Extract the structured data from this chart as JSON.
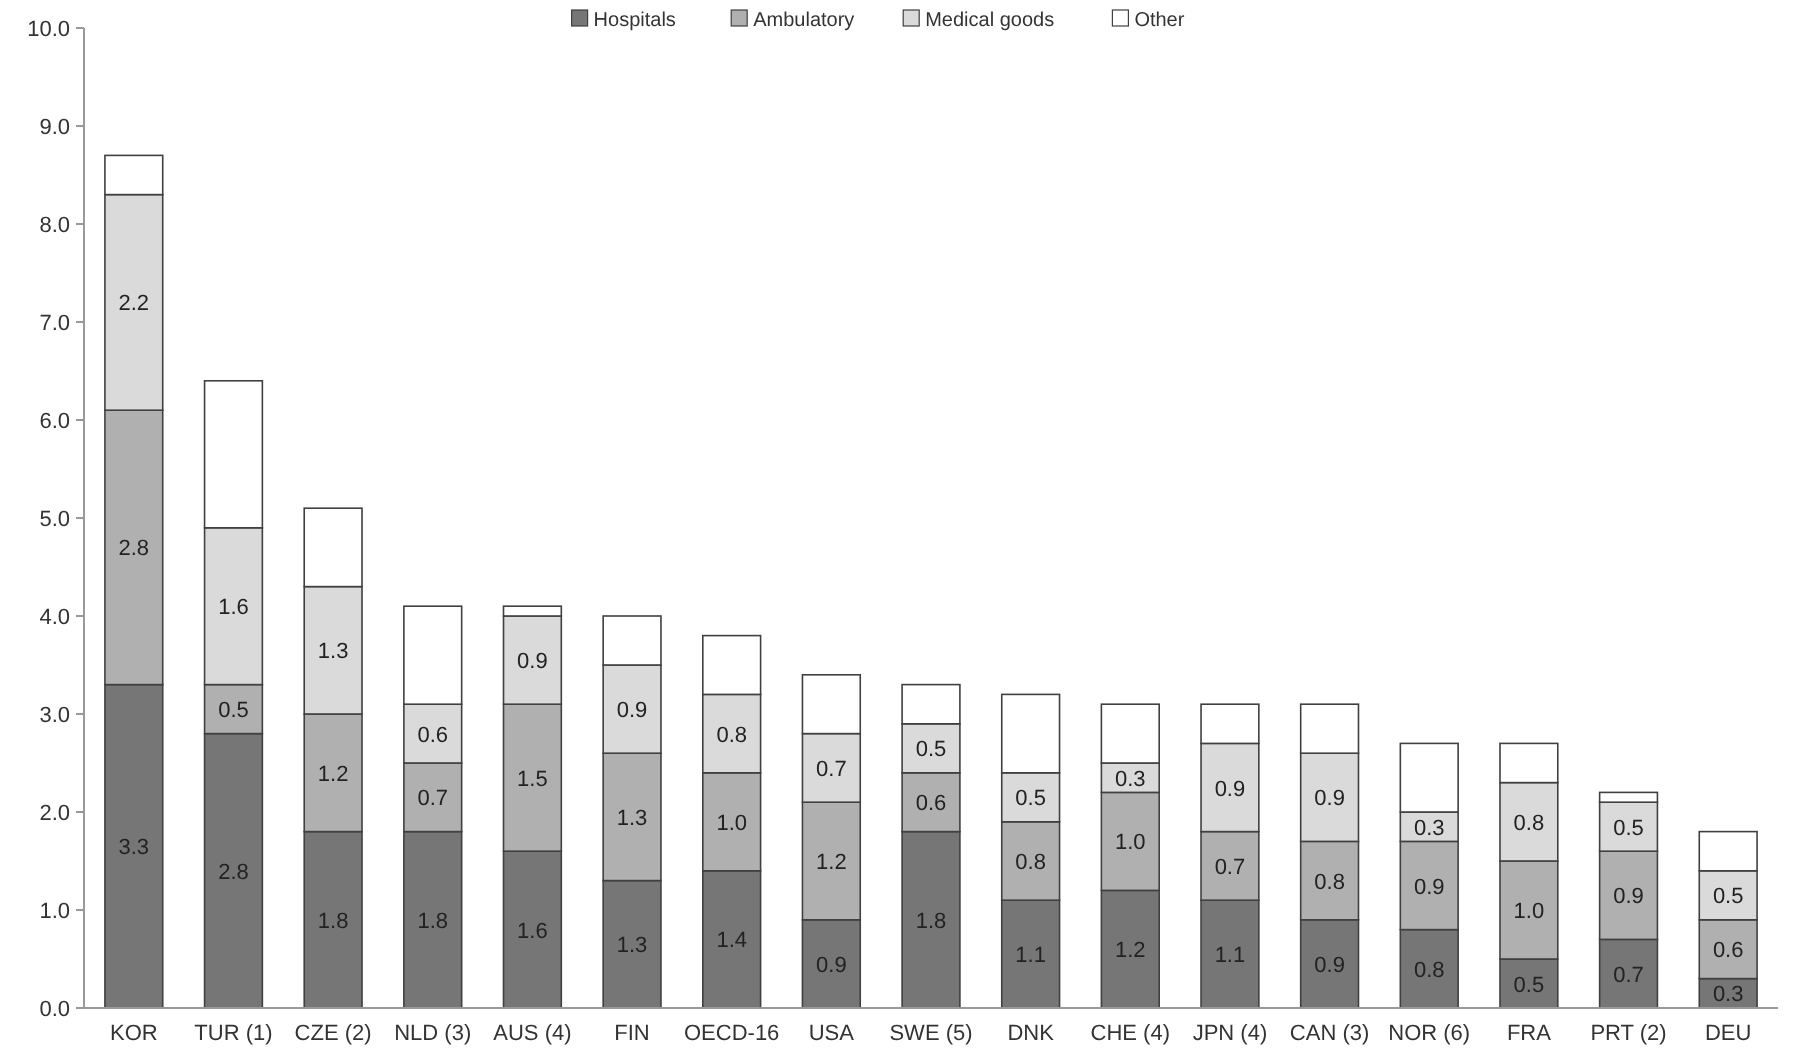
{
  "chart_data": {
    "type": "bar",
    "stacked": true,
    "legend": "top",
    "grid": false,
    "categories": [
      "KOR",
      "TUR (1)",
      "CZE (2)",
      "NLD (3)",
      "AUS (4)",
      "FIN",
      "OECD-16",
      "USA",
      "SWE (5)",
      "DNK",
      "CHE (4)",
      "JPN (4)",
      "CAN (3)",
      "NOR (6)",
      "FRA",
      "PRT (2)",
      "DEU"
    ],
    "ylim": [
      0,
      10
    ],
    "yticks": [
      {
        "value": 0,
        "label": "0.0"
      },
      {
        "value": 1,
        "label": "1.0"
      },
      {
        "value": 2,
        "label": "2.0"
      },
      {
        "value": 3,
        "label": "3.0"
      },
      {
        "value": 4,
        "label": "4.0"
      },
      {
        "value": 5,
        "label": "5.0"
      },
      {
        "value": 6,
        "label": "6.0"
      },
      {
        "value": 7,
        "label": "7.0"
      },
      {
        "value": 8,
        "label": "8.0"
      },
      {
        "value": 9,
        "label": "9.0"
      },
      {
        "value": 10,
        "label": "10.0"
      }
    ],
    "series": [
      {
        "name": "Hospitals",
        "color": "#767676",
        "values": [
          3.3,
          2.8,
          1.8,
          1.8,
          1.6,
          1.3,
          1.4,
          0.9,
          1.8,
          1.1,
          1.2,
          1.1,
          0.9,
          0.8,
          0.5,
          0.7,
          0.3
        ],
        "value_labels": [
          "3.3",
          "2.8",
          "1.8",
          "1.8",
          "1.6",
          "1.3",
          "1.4",
          "0.9",
          "1.8",
          "1.1",
          "1.2",
          "1.1",
          "0.9",
          "0.8",
          "0.5",
          "0.7",
          "0.3"
        ]
      },
      {
        "name": "Ambulatory",
        "color": "#b0b0b0",
        "values": [
          2.8,
          0.5,
          1.2,
          0.7,
          1.5,
          1.3,
          1.0,
          1.2,
          0.6,
          0.8,
          1.0,
          0.7,
          0.8,
          0.9,
          1.0,
          0.9,
          0.6
        ],
        "value_labels": [
          "2.8",
          "0.5",
          "1.2",
          "0.7",
          "1.5",
          "1.3",
          "1.0",
          "1.2",
          "0.6",
          "0.8",
          "1.0",
          "0.7",
          "0.8",
          "0.9",
          "1.0",
          "0.9",
          "0.6"
        ]
      },
      {
        "name": "Medical goods",
        "color": "#dadada",
        "values": [
          2.2,
          1.6,
          1.3,
          0.6,
          0.9,
          0.9,
          0.8,
          0.7,
          0.5,
          0.5,
          0.3,
          0.9,
          0.9,
          0.3,
          0.8,
          0.5,
          0.5
        ],
        "value_labels": [
          "2.2",
          "1.6",
          "1.3",
          "0.6",
          "0.9",
          "0.9",
          "0.8",
          "0.7",
          "0.5",
          "0.5",
          "0.3",
          "0.9",
          "0.9",
          "0.3",
          "0.8",
          "0.5",
          "0.5"
        ]
      },
      {
        "name": "Other",
        "color": "#ffffff",
        "values": [
          0.4,
          1.5,
          0.8,
          1.0,
          0.1,
          0.5,
          0.6,
          0.6,
          0.4,
          0.8,
          0.6,
          0.4,
          0.5,
          0.7,
          0.4,
          0.1,
          0.4
        ]
      }
    ]
  }
}
